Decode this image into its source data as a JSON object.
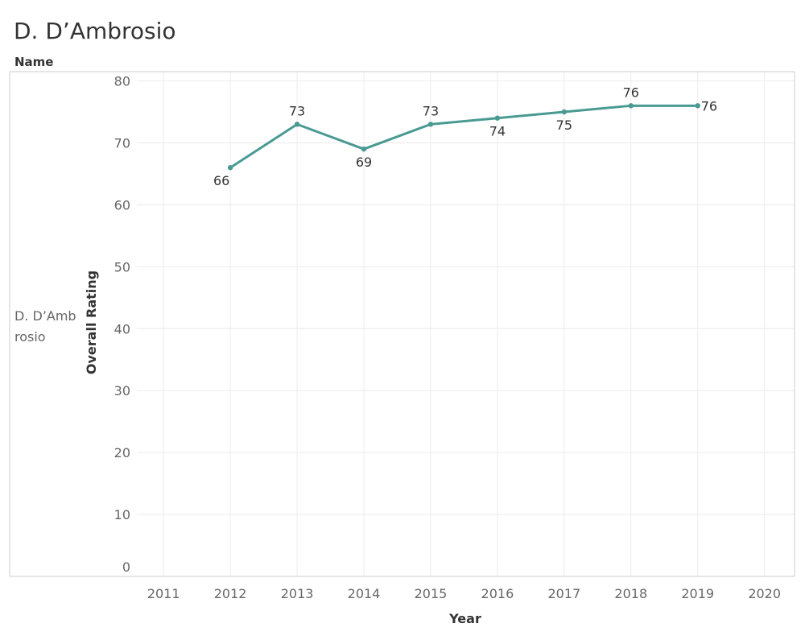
{
  "page": {
    "title": "D. D’Ambrosio",
    "row_header": "Name",
    "row_value": "D. D’Ambrosio"
  },
  "colors": {
    "series": "#4a9a94",
    "grid": "#ececec",
    "frame": "#cccccc",
    "axis_text": "#666666"
  },
  "chart_data": {
    "type": "line",
    "title": "",
    "xlabel": "Year",
    "ylabel": "Overall Rating",
    "xlim": [
      2010.6,
      2020.45
    ],
    "ylim": [
      0,
      81.5
    ],
    "x_ticks": [
      2011,
      2012,
      2013,
      2014,
      2015,
      2016,
      2017,
      2018,
      2019,
      2020
    ],
    "y_ticks": [
      0,
      10,
      20,
      30,
      40,
      50,
      60,
      70,
      80
    ],
    "grid": true,
    "legend": "none",
    "series": [
      {
        "x": [
          2012,
          2013,
          2014,
          2015,
          2016,
          2017,
          2018,
          2019
        ],
        "values": [
          66,
          73,
          69,
          73,
          74,
          75,
          76,
          76
        ],
        "labels": [
          "66",
          "73",
          "69",
          "73",
          "74",
          "75",
          "76",
          "76"
        ],
        "label_positions": [
          "below",
          "above",
          "below",
          "above",
          "below",
          "below",
          "above",
          "right"
        ]
      }
    ]
  }
}
